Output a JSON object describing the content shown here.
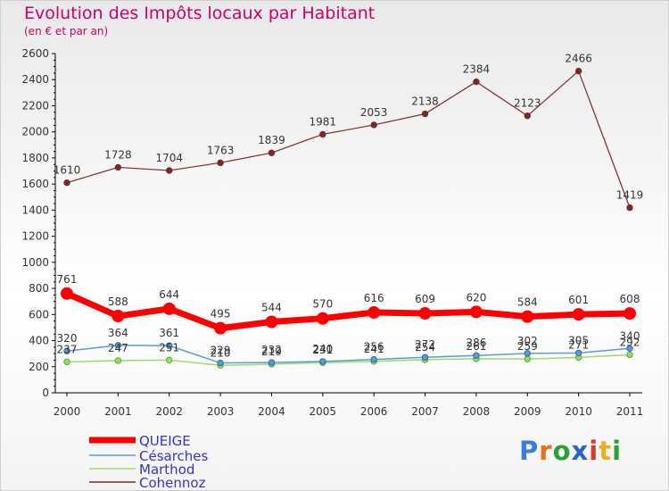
{
  "title": "Evolution des Impôts locaux par Habitant",
  "subtitle": "(en € et par an)",
  "logo": {
    "text": "Proxiti",
    "letter_colors": [
      "#3a7fd5",
      "#e8701a",
      "#2aa036",
      "#2a66c8",
      "#d43a2a",
      "#e8b01a",
      "#2aa036"
    ]
  },
  "chart_data": {
    "type": "line",
    "title": "Evolution des Impôts locaux par Habitant",
    "subtitle": "(en € et par an)",
    "xlabel": "",
    "ylabel": "",
    "x": [
      "2000",
      "2001",
      "2002",
      "2003",
      "2004",
      "2005",
      "2006",
      "2007",
      "2008",
      "2009",
      "2010",
      "2011"
    ],
    "ylim": [
      0,
      2600
    ],
    "yticks": [
      "0",
      "200",
      "400",
      "600",
      "800",
      "1000",
      "1200",
      "1400",
      "1600",
      "1800",
      "2000",
      "2200",
      "2400",
      "2600"
    ],
    "grid": "none",
    "legend_position": "bottom-left",
    "series": [
      {
        "name": "QUEIGE",
        "color": "#ff0000",
        "values": [
          761,
          588,
          644,
          495,
          544,
          570,
          616,
          609,
          620,
          584,
          601,
          608
        ],
        "labels": [
          "761",
          "588",
          "644",
          "495",
          "544",
          "570",
          "616",
          "609",
          "620",
          "584",
          "601",
          "608"
        ]
      },
      {
        "name": "Césarches",
        "color": "#5b9bd5",
        "values": [
          320,
          364,
          361,
          229,
          232,
          240,
          256,
          272,
          286,
          302,
          305,
          340
        ],
        "labels": [
          "320",
          "364",
          "361",
          "229",
          "232",
          "240",
          "256",
          "272",
          "286",
          "302",
          "305",
          "340"
        ]
      },
      {
        "name": "Marthod",
        "color": "#99dd66",
        "values": [
          237,
          247,
          251,
          210,
          219,
          231,
          241,
          254,
          261,
          259,
          271,
          292
        ],
        "labels": [
          "237",
          "247",
          "251",
          "210",
          "219",
          "231",
          "241",
          "254",
          "261",
          "259",
          "271",
          "292"
        ]
      },
      {
        "name": "Cohennoz",
        "color": "#7a2828",
        "values": [
          1610,
          1728,
          1704,
          1763,
          1839,
          1981,
          2053,
          2138,
          2384,
          2123,
          2466,
          1419
        ],
        "labels": [
          "1610",
          "1728",
          "1704",
          "1763",
          "1839",
          "1981",
          "2053",
          "2138",
          "2384",
          "2123",
          "2466",
          "1419"
        ]
      }
    ]
  }
}
